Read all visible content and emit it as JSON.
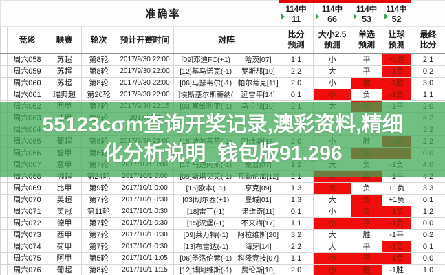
{
  "colors": {
    "red_cell_bg": "#f20d0d",
    "red_cell_text": "#9a1a02",
    "banner_green_rgba": "rgba(58,168,82,0.72)",
    "top_strip_red": "#e60000"
  },
  "banner": {
    "line1": "55123cσm查询开奖记录,澳彩资料,精细",
    "line2": "化分析说明_钱包版91.296"
  },
  "table": {
    "accuracy_label": "准确率",
    "stats": [
      {
        "hits": "114中",
        "value": "11"
      },
      {
        "hits": "114中",
        "value": "66"
      },
      {
        "hits": "114中",
        "value": "53"
      },
      {
        "hits": "114中",
        "value": "52"
      }
    ],
    "columns": {
      "jc": "竞彩",
      "league": "联赛",
      "round": "轮次",
      "time": "预计开赛时间",
      "match": "对阵",
      "score": {
        "l1": "比分",
        "l2": "预测"
      },
      "ou": {
        "l1": "大小2.5",
        "l2": "预测"
      },
      "single": {
        "l1": "单选",
        "l2": "预测"
      },
      "handicap": {
        "l1": "让球",
        "l2": "预测"
      },
      "final": {
        "l1": "最终",
        "l2": "比分"
      }
    }
  },
  "rows": [
    {
      "id": "周六058",
      "league": "苏超",
      "round": "第8轮",
      "time": "2017/9/30 22:00",
      "home": "[09]邓迪FC(+1)",
      "away": "哈茨[07]",
      "score": {
        "text": "1:1",
        "red": false
      },
      "ou": {
        "text": "小",
        "red": false
      },
      "single": {
        "text": "平",
        "red": false
      },
      "handicap": {
        "text": "+1胜",
        "red": true
      },
      "final": {
        "text": "2:1",
        "red": false
      }
    },
    {
      "id": "周六059",
      "league": "苏超",
      "round": "第8轮",
      "time": "2017/9/30 22:00",
      "home": "[12]基马诺克(-1)",
      "away": "罗斯郡[10]",
      "score": {
        "text": "2:2",
        "red": false
      },
      "ou": {
        "text": "大",
        "red": false
      },
      "single": {
        "text": "平",
        "red": false
      },
      "handicap": {
        "text": "-1负",
        "red": true
      },
      "final": {
        "text": "0:2",
        "red": false
      }
    },
    {
      "id": "周六060",
      "league": "苏超",
      "round": "第8轮",
      "time": "2017/9/30 22:00",
      "home": "[06]马瑟韦尔(-1)",
      "away": "帕尔蒂克[11]",
      "score": {
        "text": "2:0",
        "red": false
      },
      "ou": {
        "text": "小",
        "red": false
      },
      "single": {
        "text": "胜",
        "red": true
      },
      "handicap": {
        "text": "-1胜",
        "red": true
      },
      "final": {
        "text": "3:0",
        "red": false
      }
    },
    {
      "id": "周六061",
      "league": "瑞典超",
      "round": "第26轮",
      "time": "2017/9/30 22:00",
      "home": "]埃斯基尔斯蒂纳(",
      "away": "延雪平[14]",
      "score": {
        "text": "0:1",
        "red": false
      },
      "ou": {
        "text": "小",
        "red": true
      },
      "single": {
        "text": "负",
        "red": false
      },
      "handicap": {
        "text": "-1负",
        "red": true
      },
      "final": {
        "text": "1:1",
        "red": false
      }
    },
    {
      "id": "周六062",
      "league": "西甲",
      "round": "第7轮",
      "time": "2017/9/30 22:15",
      "home": "[03]塞维利亚(-1)",
      "away": "马拉加[19]",
      "score": {
        "text": "2:1",
        "red": false
      },
      "ou": {
        "text": "大",
        "red": false
      },
      "single": {
        "text": "胜",
        "red": true
      },
      "handicap": {
        "text": "-1平",
        "red": false
      },
      "final": {
        "text": "2:0",
        "red": false
      }
    },
    {
      "id": "周六063",
      "league": "法甲",
      "round": "第8轮",
      "time": "2017/9/30",
      "home": "",
      "away": "",
      "score": {
        "text": "",
        "red": false
      },
      "ou": {
        "text": "",
        "red": false
      },
      "single": {
        "text": "",
        "red": false
      },
      "handicap": {
        "text": "",
        "red": false
      },
      "final": {
        "text": "6:2",
        "red": false
      }
    },
    {
      "id": "周六064",
      "league": "",
      "round": "",
      "time": "",
      "home": "",
      "away": "",
      "score": {
        "text": "",
        "red": false
      },
      "ou": {
        "text": "",
        "red": false
      },
      "single": {
        "text": "",
        "red": false
      },
      "handicap": {
        "text": "",
        "red": false
      },
      "final": {
        "text": "3:2",
        "red": false
      }
    },
    {
      "id": "周六065",
      "league": "葡超",
      "round": "第8轮",
      "time": "2017/9/30 23:00",
      "home": "[15]波尔蒂芒(-1)",
      "away": "阿维斯[18]",
      "score": {
        "text": "2:0",
        "red": false
      },
      "ou": {
        "text": "小",
        "red": false
      },
      "single": {
        "text": "胜",
        "red": false
      },
      "handicap": {
        "text": "-1胜",
        "red": true
      },
      "final": {
        "text": "2:2",
        "red": false
      }
    },
    {
      "id": "周六066",
      "league": "智甲",
      "round": "第8轮",
      "time": "",
      "home": "",
      "away": "",
      "score": {
        "text": "",
        "red": false
      },
      "ou": {
        "text": "",
        "red": false
      },
      "single": {
        "text": "胜",
        "red": true
      },
      "handicap": {
        "text": "",
        "red": true
      },
      "final": {
        "text": "0:0",
        "red": false
      }
    },
    {
      "id": "周六067",
      "league": "意甲",
      "round": "第7轮",
      "time": "2017/10/1 0:00",
      "home": "[17]乌迪内斯(-1)",
      "away": "桑普[07]",
      "score": {
        "text": "1:2",
        "red": false
      },
      "ou": {
        "text": "大",
        "red": false
      },
      "single": {
        "text": "负",
        "red": false
      },
      "handicap": {
        "text": "-1负",
        "red": false
      },
      "final": {
        "text": "4:0",
        "red": false
      }
    },
    {
      "id": "周六068",
      "league": "挪超",
      "round": "第24轮",
      "time": "2017/10/1 0:00",
      "home": "[09]斯塔贝克(-1)",
      "away": "瓦勒伦加[12]",
      "score": {
        "text": "2:1",
        "red": false
      },
      "ou": {
        "text": "大",
        "red": true
      },
      "single": {
        "text": "胜",
        "red": true
      },
      "handicap": {
        "text": "-1平",
        "red": false
      },
      "final": {
        "text": "4:2",
        "red": false
      }
    },
    {
      "id": "周六069",
      "league": "比甲",
      "round": "第9轮",
      "time": "2017/10/1 0:00",
      "home": "[15]欧本(+1)",
      "away": "亨克[09]",
      "score": {
        "text": "1:3",
        "red": false
      },
      "ou": {
        "text": "大",
        "red": true
      },
      "single": {
        "text": "负",
        "red": false
      },
      "handicap": {
        "text": "+1负",
        "red": false
      },
      "final": {
        "text": "3:3",
        "red": false
      }
    },
    {
      "id": "周六070",
      "league": "英超",
      "round": "第7轮",
      "time": "2017/10/1 0:30",
      "home": "[03]切尔西(+1)",
      "away": "曼城[01]",
      "score": {
        "text": "1:3",
        "red": false
      },
      "ou": {
        "text": "大",
        "red": false
      },
      "single": {
        "text": "负",
        "red": true
      },
      "handicap": {
        "text": "+1负",
        "red": false
      },
      "final": {
        "text": "0:1",
        "red": false
      }
    },
    {
      "id": "周六071",
      "league": "英冠",
      "round": "第11轮",
      "time": "2017/10/1 0:30",
      "home": "[18]雷丁(-1)",
      "away": "诺维奇[11]",
      "score": {
        "text": "0:1",
        "red": false
      },
      "ou": {
        "text": "小",
        "red": false
      },
      "single": {
        "text": "负",
        "red": true
      },
      "handicap": {
        "text": "-1负",
        "red": true
      },
      "final": {
        "text": "1:2",
        "red": false
      }
    },
    {
      "id": "周六072",
      "league": "德甲",
      "round": "第7轮",
      "time": "2017/10/1 0:30",
      "home": "[15]汉堡(-1)",
      "away": "不来梅[17]",
      "score": {
        "text": "1:1",
        "red": false
      },
      "ou": {
        "text": "小",
        "red": true
      },
      "single": {
        "text": "平",
        "red": true
      },
      "handicap": {
        "text": "-1负",
        "red": true
      },
      "final": {
        "text": "0:0",
        "red": false
      }
    },
    {
      "id": "周六073",
      "league": "西甲",
      "round": "第7轮",
      "time": "2017/10/1 0:30",
      "home": "[09]莱万特(-1)",
      "away": "阿拉维斯[20]",
      "score": {
        "text": "3:2",
        "red": false
      },
      "ou": {
        "text": "大",
        "red": false
      },
      "single": {
        "text": "胜",
        "red": false
      },
      "handicap": {
        "text": "-1平",
        "red": false
      },
      "final": {
        "text": "0:2",
        "red": false
      }
    },
    {
      "id": "周六074",
      "league": "荷甲",
      "round": "第7轮",
      "time": "2017/10/1 0:30",
      "home": "[13]布雷达(-1)",
      "away": "海牙[14]",
      "score": {
        "text": "2:2",
        "red": false
      },
      "ou": {
        "text": "大",
        "red": false
      },
      "single": {
        "text": "平",
        "red": false
      },
      "handicap": {
        "text": "-1负",
        "red": true
      },
      "final": {
        "text": "0:1",
        "red": false
      }
    },
    {
      "id": "周六075",
      "league": "阿甲",
      "round": "第5轮",
      "time": "2017/10/1 1:05",
      "home": "[06]圣洛伦索(-1)",
      "away": "科隆竞技[07]",
      "score": {
        "text": "1:1",
        "red": false
      },
      "ou": {
        "text": "小",
        "red": true
      },
      "single": {
        "text": "平",
        "red": true
      },
      "handicap": {
        "text": "-1负",
        "red": true
      },
      "final": {
        "text": "0:0",
        "red": false
      }
    },
    {
      "id": "周六076",
      "league": "葡超",
      "round": "第8轮",
      "time": "2017/10/1 1:15",
      "home": "[12]博阿维斯(-1)",
      "away": "费伦斯[10]",
      "score": {
        "text": "2:0",
        "red": false
      },
      "ou": {
        "text": "小",
        "red": true
      },
      "single": {
        "text": "胜",
        "red": true
      },
      "handicap": {
        "text": "-1胜",
        "red": false
      },
      "final": {
        "text": "1:0",
        "red": false
      }
    }
  ]
}
